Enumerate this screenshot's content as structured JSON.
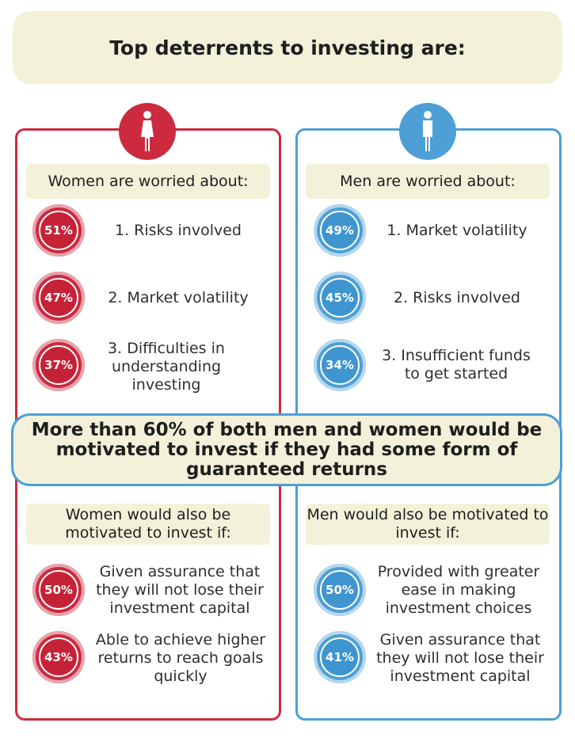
{
  "header": {
    "title": "Top deterrents to investing are:"
  },
  "women": {
    "worried_heading": "Women are worried about:",
    "worries": [
      {
        "percent": "51%",
        "text": "1. Risks involved"
      },
      {
        "percent": "47%",
        "text": "2. Market volatility"
      },
      {
        "percent": "37%",
        "text": "3.  Difficulties in understanding investing"
      }
    ],
    "motivated_heading": "Women would also be motivated to invest if:",
    "motivators": [
      {
        "percent": "50%",
        "text": "Given assurance that they will not lose their investment capital"
      },
      {
        "percent": "43%",
        "text": "Able to achieve higher returns to reach goals quickly"
      }
    ]
  },
  "men": {
    "worried_heading": "Men are worried about:",
    "worries": [
      {
        "percent": "49%",
        "text": "1. Market volatility"
      },
      {
        "percent": "45%",
        "text": "2. Risks involved"
      },
      {
        "percent": "34%",
        "text": "3.  Insufficient funds to get started"
      }
    ],
    "motivated_heading": "Men would also be motivated to invest if:",
    "motivators": [
      {
        "percent": "50%",
        "text": "Provided with greater ease in making investment choices"
      },
      {
        "percent": "41%",
        "text": "Given assurance that they will not lose their investment capital"
      }
    ]
  },
  "banner": {
    "text": "More than 60% of both men and women would be motivated to invest if they had some form of guaranteed returns"
  },
  "colors": {
    "women": "#cc2a3f",
    "men": "#4d9fd6",
    "highlight": "#f3f1d9"
  },
  "icons": {
    "women": "woman-icon",
    "men": "man-icon"
  }
}
